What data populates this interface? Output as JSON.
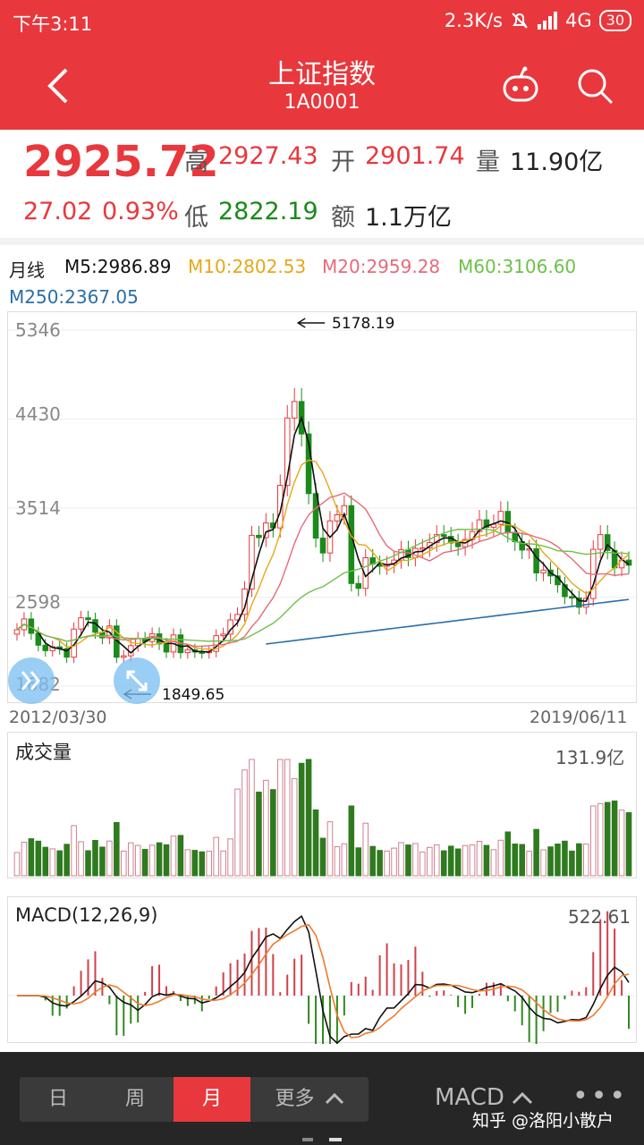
{
  "status": {
    "time": "下午3:11",
    "speed": "2.3K/s",
    "network": "4G",
    "battery": "30"
  },
  "header": {
    "title": "上证指数",
    "code": "1A0001"
  },
  "quote": {
    "price": "2925.72",
    "change": "27.02",
    "change_pct": "0.93%",
    "high_label": "高",
    "high": "2927.43",
    "open_label": "开",
    "open": "2901.74",
    "vol_label": "量",
    "vol": "11.90亿",
    "low_label": "低",
    "low": "2822.19",
    "amount_label": "额",
    "amount": "1.1万亿"
  },
  "ma": {
    "period": "月线",
    "m5": "M5:2986.89",
    "m10": "M10:2802.53",
    "m20": "M20:2959.28",
    "m60": "M60:3106.60",
    "m250": "M250:2367.05",
    "colors": {
      "m5": "#111111",
      "m10": "#e6a817",
      "m20": "#e86a7a",
      "m60": "#6cc24a",
      "m250": "#2a6fa8"
    }
  },
  "chart": {
    "y_ticks": [
      "5346",
      "4430",
      "3514",
      "2598",
      "1682"
    ],
    "max_marker": "5178.19",
    "min_marker": "1849.65",
    "start_date": "2012/03/30",
    "end_date": "2019/06/11"
  },
  "volume": {
    "label": "成交量",
    "max": "131.9亿"
  },
  "macd": {
    "label": "MACD(12,26,9)",
    "max": "522.61"
  },
  "bottom": {
    "tabs": [
      "日",
      "周",
      "月",
      "更多"
    ],
    "active_tab": "月",
    "indicator": "MACD",
    "watermark": "知乎 @洛阳小散户"
  },
  "chart_data": {
    "type": "candlestick",
    "title": "上证指数",
    "x_range": [
      "2012/03/30",
      "2019/06/11"
    ],
    "ylim": [
      1682,
      5346
    ],
    "y_ticks": [
      5346,
      4430,
      3514,
      2598,
      1682
    ],
    "period": "monthly",
    "close": [
      2262,
      2373,
      2225,
      2103,
      2047,
      2086,
      2068,
      1980,
      2269,
      2385,
      2366,
      2236,
      2178,
      2301,
      1979,
      1994,
      2098,
      2174,
      2141,
      2220,
      2116,
      2033,
      2209,
      2026,
      2056,
      2033,
      2026,
      2039,
      2201,
      2217,
      2363,
      2420,
      2682,
      3234,
      3210,
      3361,
      3310,
      3748,
      4441,
      4611,
      4277,
      3663,
      3205,
      3052,
      3382,
      3445,
      3539,
      2738,
      2688,
      3003,
      2938,
      2916,
      2932,
      2979,
      3085,
      3004,
      3100,
      3104,
      3159,
      3241,
      3223,
      3155,
      3117,
      3192,
      3273,
      3393,
      3317,
      3348,
      3480,
      3259,
      3168,
      3082,
      3095,
      2847,
      2876,
      2816,
      2725,
      2603,
      2588,
      2494,
      2584,
      3090,
      3241,
      3078,
      2899,
      2979,
      2926
    ],
    "max_value": 5178.19,
    "min_value": 1849.65,
    "ma_values": {
      "M5": 2986.89,
      "M10": 2802.53,
      "M20": 2959.28,
      "M60": 3106.6,
      "M250": 2367.05
    }
  }
}
